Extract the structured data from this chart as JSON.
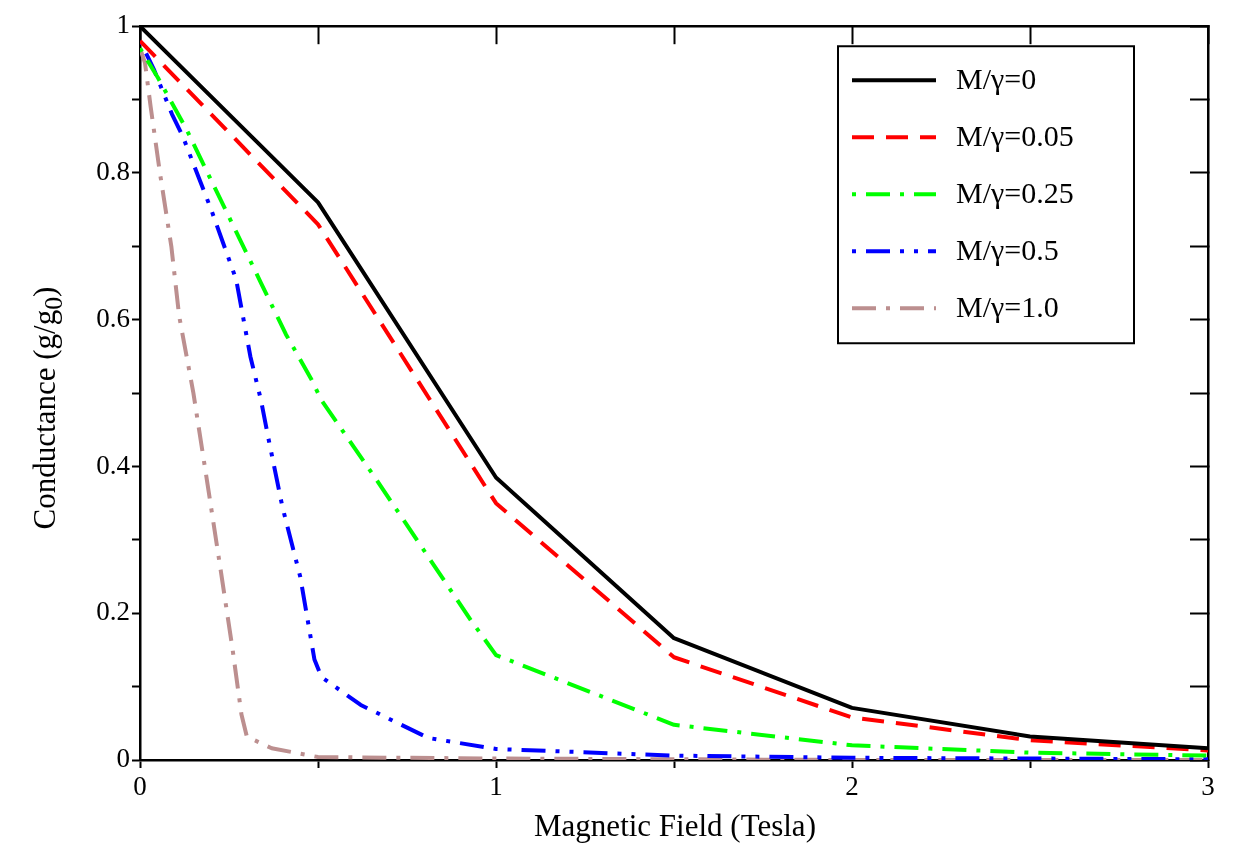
{
  "chart_data": {
    "type": "line",
    "xlabel": "Magnetic Field (Tesla)",
    "ylabel": "Conductance (g/g$_{0}$)",
    "xlim": [
      0,
      3
    ],
    "ylim": [
      0,
      1
    ],
    "xticks": [
      0,
      {
        "value": 0.5,
        "label": null
      },
      1,
      {
        "value": 1.5,
        "label": null
      },
      2,
      {
        "value": 2.5,
        "label": null
      },
      3
    ],
    "yticks": [
      0,
      {
        "value": 0.1,
        "label": null
      },
      0.2,
      {
        "value": 0.3,
        "label": null
      },
      0.4,
      {
        "value": 0.5,
        "label": null
      },
      0.6,
      {
        "value": 0.7,
        "label": null
      },
      0.8,
      {
        "value": 0.9,
        "label": null
      },
      1
    ],
    "grid": false,
    "legend": "top right",
    "marker": "none",
    "series": [
      {
        "name": "M/γ=0",
        "color": "#000000",
        "line_style": "solid",
        "x": [
          0,
          0.5,
          1,
          1.5,
          2,
          2.5,
          3
        ],
        "values": [
          1.0,
          0.76,
          0.385,
          0.166,
          0.071,
          0.032,
          0.016
        ]
      },
      {
        "name": "M/γ=0.05",
        "color": "#ff0000",
        "line_style": "dashed",
        "x": [
          0,
          0.5,
          1,
          1.5,
          2,
          2.5,
          3
        ],
        "values": [
          0.98,
          0.73,
          0.35,
          0.14,
          0.058,
          0.027,
          0.013
        ]
      },
      {
        "name": "M/γ=0.25",
        "color": "#00ff00",
        "line_style": "dashed",
        "x": [
          0,
          0.05,
          0.13,
          0.2,
          0.27,
          0.34,
          0.41,
          0.48,
          0.51,
          0.66,
          0.84,
          0.93,
          1.0,
          1.5,
          2,
          2.5,
          3
        ],
        "values": [
          0.97,
          0.93,
          0.86,
          0.79,
          0.72,
          0.65,
          0.58,
          0.52,
          0.49,
          0.385,
          0.255,
          0.19,
          0.143,
          0.048,
          0.02,
          0.01,
          0.006
        ]
      },
      {
        "name": "M/γ=0.5",
        "color": "#0000ff",
        "line_style": "dashed",
        "x": [
          0,
          0.04,
          0.09,
          0.12,
          0.2,
          0.27,
          0.31,
          0.34,
          0.36,
          0.4,
          0.45,
          0.49,
          0.51,
          0.62,
          0.81,
          1.0,
          1.5,
          2,
          2.5,
          3
        ],
        "values": [
          0.98,
          0.94,
          0.88,
          0.85,
          0.75,
          0.655,
          0.55,
          0.49,
          0.44,
          0.345,
          0.25,
          0.137,
          0.113,
          0.075,
          0.03,
          0.015,
          0.006,
          0.003,
          0.002,
          0.001
        ]
      },
      {
        "name": "M/γ=1.0",
        "color": "#bc8f8f",
        "line_style": "dashed",
        "x": [
          0,
          0.014,
          0.03,
          0.056,
          0.088,
          0.11,
          0.15,
          0.19,
          0.225,
          0.26,
          0.285,
          0.3,
          0.37,
          0.5,
          1,
          1.5,
          2,
          2.5,
          3
        ],
        "values": [
          0.97,
          0.95,
          0.89,
          0.8,
          0.7,
          0.605,
          0.5,
          0.375,
          0.264,
          0.151,
          0.062,
          0.032,
          0.016,
          0.004,
          0.002,
          0.001,
          0,
          0,
          0
        ]
      }
    ]
  }
}
